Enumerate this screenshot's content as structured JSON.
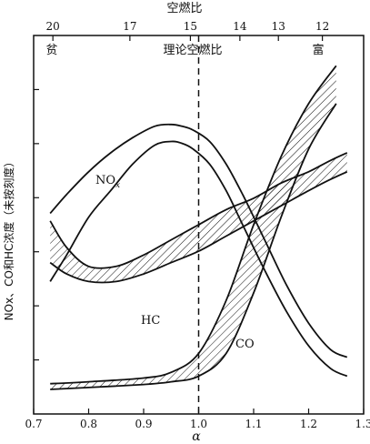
{
  "chart_data": {
    "type": "line",
    "title": "",
    "xlabel": "α",
    "ylabel": "NOx、CO和HC浓度（未按刻度）",
    "xlim": [
      0.7,
      1.3
    ],
    "x_ticks": [
      "0.7",
      "0.8",
      "0.9",
      "1.0",
      "1.1",
      "1.2",
      "1.3"
    ],
    "top_axis": {
      "label": "空燃比",
      "ticks": [
        "20",
        "17",
        "15",
        "14",
        "13",
        "12"
      ],
      "tick_alpha": [
        0.735,
        0.875,
        0.985,
        1.075,
        1.145,
        1.225
      ]
    },
    "annotations": {
      "lean": "贫",
      "rich": "富",
      "stoich": "理论空燃比"
    },
    "stoich_alpha": 1.0,
    "ylim": [
      0,
      100
    ],
    "grid": false,
    "series": [
      {
        "name": "NOx",
        "label": "NO",
        "label_sub": "x",
        "style": "band-outline",
        "x": [
          0.73,
          0.76,
          0.8,
          0.84,
          0.88,
          0.92,
          0.95,
          0.97,
          0.99,
          1.02,
          1.05,
          1.08,
          1.12,
          1.16,
          1.2,
          1.24,
          1.27
        ],
        "upper": [
          53,
          58,
          64,
          69,
          73,
          76,
          76.5,
          76,
          75,
          72,
          66,
          58,
          46,
          34,
          24,
          17,
          15
        ],
        "lower": [
          35,
          42,
          52,
          59,
          66,
          71,
          72,
          71.5,
          70,
          66,
          59,
          50,
          38,
          27,
          18,
          12,
          10
        ]
      },
      {
        "name": "HC",
        "label": "HC",
        "style": "hatched-band",
        "x": [
          0.73,
          0.76,
          0.8,
          0.85,
          0.9,
          0.95,
          1.0,
          1.05,
          1.1,
          1.15,
          1.2,
          1.24,
          1.27
        ],
        "upper": [
          51,
          44,
          39,
          39,
          42,
          46,
          50,
          54,
          57,
          61,
          64,
          67,
          69
        ],
        "lower": [
          40,
          37,
          35,
          35,
          37,
          40,
          43,
          47,
          51,
          55,
          59,
          62,
          64
        ]
      },
      {
        "name": "CO",
        "label": "CO",
        "style": "hatched-band",
        "x": [
          0.73,
          0.8,
          0.9,
          0.95,
          1.0,
          1.05,
          1.1,
          1.15,
          1.2,
          1.25
        ],
        "upper": [
          8,
          8.5,
          9.5,
          11,
          16,
          30,
          50,
          68,
          82,
          92
        ],
        "lower": [
          6.5,
          7,
          7.8,
          8.5,
          10,
          16,
          32,
          52,
          70,
          82
        ]
      }
    ]
  }
}
